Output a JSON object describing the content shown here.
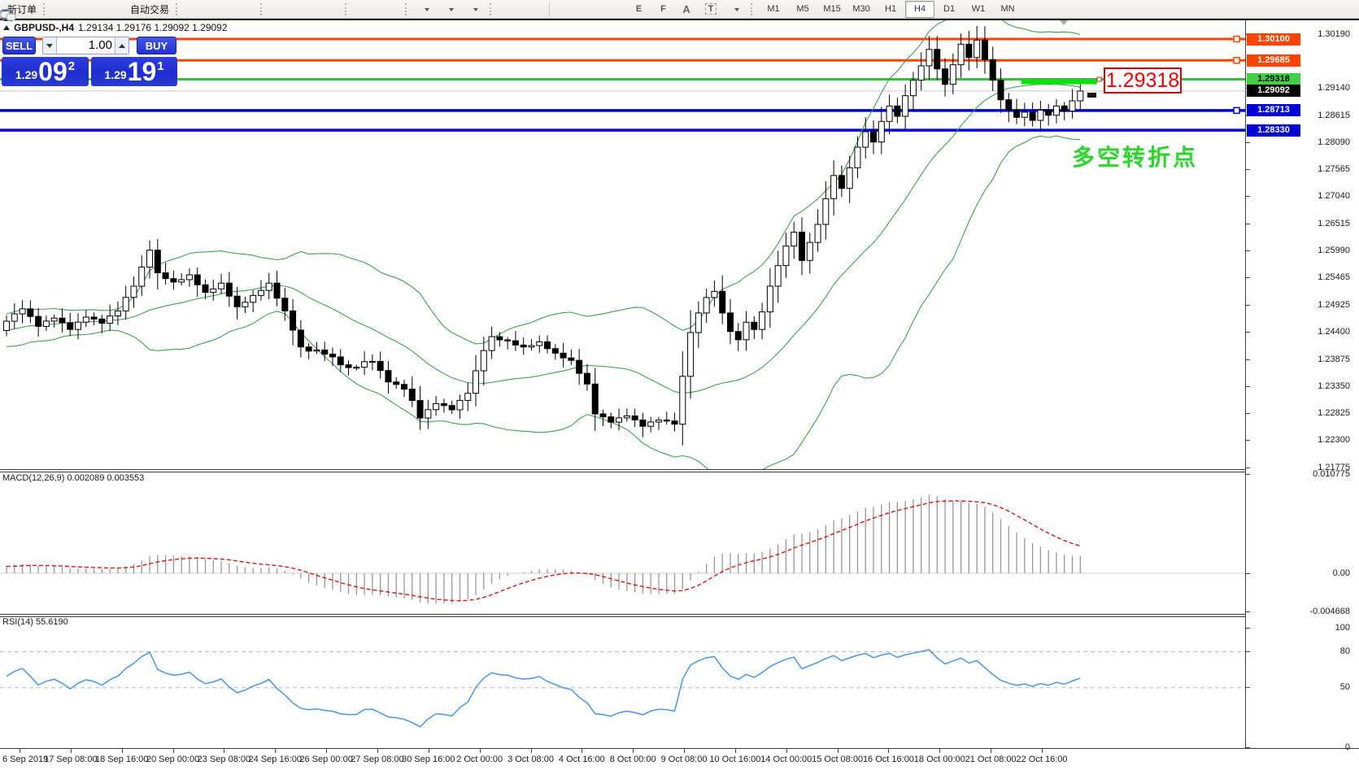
{
  "toolbar": {
    "new_order_label": "新订单",
    "autotrade_label": "自动交易",
    "timeframes": [
      "M1",
      "M5",
      "M15",
      "M30",
      "H1",
      "H4",
      "D1",
      "W1",
      "MN"
    ],
    "active_timeframe": "H4",
    "icon_glyphs": {
      "text_tool": "A",
      "label_tool": "T",
      "fibo_tool": "F",
      "channel_tool": "E"
    }
  },
  "header": {
    "symbol_period": "GBPUSD-,H4",
    "ohlc": "1.29134 1.29176 1.29092 1.29092"
  },
  "trade_panel": {
    "sell_label": "SELL",
    "buy_label": "BUY",
    "volume": "1.00",
    "sell": {
      "prefix": "1.29",
      "big": "09",
      "sup": "2"
    },
    "buy": {
      "prefix": "1.29",
      "big": "19",
      "sup": "1"
    }
  },
  "annotations": {
    "price_box": "1.29318",
    "turning_point": "多空转折点"
  },
  "chart_data": {
    "type": "candlestick",
    "symbol": "GBPUSD-",
    "period": "H4",
    "ohlc_display": {
      "open": "1.29134",
      "high": "1.29176",
      "low": "1.29092",
      "close": "1.29092"
    },
    "bars": 136,
    "y_range": [
      1.2176,
      1.3046
    ],
    "price_keyframes": [
      [
        0,
        1.2462
      ],
      [
        2,
        1.2486
      ],
      [
        4,
        1.2452
      ],
      [
        6,
        1.2468
      ],
      [
        8,
        1.2446
      ],
      [
        10,
        1.247
      ],
      [
        12,
        1.2458
      ],
      [
        14,
        1.2482
      ],
      [
        16,
        1.253
      ],
      [
        18,
        1.26
      ],
      [
        19,
        1.2556
      ],
      [
        21,
        1.2538
      ],
      [
        23,
        1.2552
      ],
      [
        25,
        1.2518
      ],
      [
        27,
        1.2536
      ],
      [
        29,
        1.249
      ],
      [
        31,
        1.2512
      ],
      [
        33,
        1.2536
      ],
      [
        35,
        1.2482
      ],
      [
        37,
        1.2412
      ],
      [
        40,
        1.2398
      ],
      [
        43,
        1.2372
      ],
      [
        46,
        1.2384
      ],
      [
        48,
        1.2344
      ],
      [
        50,
        1.233
      ],
      [
        51,
        1.2308
      ],
      [
        52,
        1.2274
      ],
      [
        54,
        1.2302
      ],
      [
        56,
        1.229
      ],
      [
        58,
        1.2322
      ],
      [
        60,
        1.2405
      ],
      [
        61,
        1.2432
      ],
      [
        63,
        1.2424
      ],
      [
        65,
        1.2412
      ],
      [
        67,
        1.2422
      ],
      [
        69,
        1.24
      ],
      [
        71,
        1.2386
      ],
      [
        73,
        1.234
      ],
      [
        74,
        1.2282
      ],
      [
        76,
        1.2266
      ],
      [
        78,
        1.2278
      ],
      [
        80,
        1.2258
      ],
      [
        82,
        1.227
      ],
      [
        84,
        1.2262
      ],
      [
        85,
        1.2355
      ],
      [
        86,
        1.244
      ],
      [
        87,
        1.2478
      ],
      [
        88,
        1.2508
      ],
      [
        89,
        1.252
      ],
      [
        90,
        1.2478
      ],
      [
        91,
        1.2442
      ],
      [
        92,
        1.2426
      ],
      [
        93,
        1.246
      ],
      [
        94,
        1.2446
      ],
      [
        95,
        1.248
      ],
      [
        96,
        1.253
      ],
      [
        97,
        1.257
      ],
      [
        98,
        1.2608
      ],
      [
        99,
        1.2635
      ],
      [
        100,
        1.258
      ],
      [
        101,
        1.2615
      ],
      [
        102,
        1.265
      ],
      [
        103,
        1.27
      ],
      [
        104,
        1.2745
      ],
      [
        105,
        1.272
      ],
      [
        106,
        1.276
      ],
      [
        107,
        1.28
      ],
      [
        108,
        1.283
      ],
      [
        109,
        1.281
      ],
      [
        110,
        1.285
      ],
      [
        111,
        1.288
      ],
      [
        112,
        1.286
      ],
      [
        113,
        1.29
      ],
      [
        114,
        1.293
      ],
      [
        115,
        1.2958
      ],
      [
        116,
        1.299
      ],
      [
        117,
        1.2952
      ],
      [
        118,
        1.2922
      ],
      [
        119,
        1.296
      ],
      [
        120,
        1.3
      ],
      [
        121,
        1.2974
      ],
      [
        122,
        1.3008
      ],
      [
        123,
        1.297
      ],
      [
        124,
        1.293
      ],
      [
        125,
        1.2892
      ],
      [
        126,
        1.2872
      ],
      [
        127,
        1.2858
      ],
      [
        128,
        1.2868
      ],
      [
        129,
        1.2852
      ],
      [
        130,
        1.2872
      ],
      [
        131,
        1.2862
      ],
      [
        132,
        1.288
      ],
      [
        133,
        1.287
      ],
      [
        134,
        1.289
      ],
      [
        135,
        1.2909
      ]
    ],
    "bollinger": {
      "period": 20,
      "deviation": 2,
      "color": "#3FA050"
    },
    "levels": [
      {
        "label": "1.30100",
        "price": 1.301,
        "line": "#FF4300",
        "bg": "#FF4300",
        "fg": "#FFFFFF",
        "lw": 3,
        "marker": true
      },
      {
        "label": "1.29685",
        "price": 1.29685,
        "line": "#FF4300",
        "bg": "#FF4300",
        "fg": "#FFFFFF",
        "lw": 3,
        "marker": true
      },
      {
        "label": "1.29318",
        "price": 1.29318,
        "line": "#3CBE3C",
        "bg": "#44CE44",
        "fg": "#000000",
        "lw": 3,
        "marker": false
      },
      {
        "label": "1.28713",
        "price": 1.28713,
        "line": "#0000D8",
        "bg": "#0000D8",
        "fg": "#FFFFFF",
        "lw": 3.5,
        "marker": true
      },
      {
        "label": "1.28330",
        "price": 1.2833,
        "line": "#0000D8",
        "bg": "#0000D8",
        "fg": "#FFFFFF",
        "lw": 3.5,
        "marker": false
      }
    ],
    "current_price": {
      "label": "1.29092",
      "price": 1.29092,
      "line": "#C8C8C8",
      "bg": "#000000",
      "fg": "#FFFFFF"
    },
    "highlight_box": {
      "bar_start": 127.6,
      "bar_end": 137.1,
      "price_top": 1.29311,
      "price_bottom": 1.29222,
      "color": "#0BE20B",
      "selection_marker": true
    },
    "y_ticks": [
      "1.30190",
      "1.29140",
      "1.28615",
      "1.28090",
      "1.27565",
      "1.27040",
      "1.26515",
      "1.25990",
      "1.25465",
      "1.24925",
      "1.24400",
      "1.23875",
      "1.23350",
      "1.22825",
      "1.22300",
      "1.21775"
    ],
    "macd": {
      "label": "MACD(12,26,9) 0.002089 0.003553",
      "params": [
        12,
        26,
        9
      ],
      "main": 0.002089,
      "signal": 0.003553,
      "axis": [
        "0.010775",
        "0.00",
        "-0.004668"
      ],
      "histogram_color": "#979797",
      "signal_color": "#E01010"
    },
    "rsi": {
      "label": "RSI(14) 55.6190",
      "period": 14,
      "value": 55.619,
      "axis": [
        "100",
        "80",
        "50",
        "0"
      ],
      "levels": [
        80,
        50
      ],
      "color": "#4495EC"
    },
    "x_labels": [
      "6 Sep 2019",
      "17 Sep 08:00",
      "18 Sep 16:00",
      "20 Sep 00:00",
      "23 Sep 08:00",
      "24 Sep 16:00",
      "26 Sep 00:00",
      "27 Sep 08:00",
      "30 Sep 16:00",
      "2 Oct 00:00",
      "3 Oct 08:00",
      "4 Oct 16:00",
      "8 Oct 00:00",
      "9 Oct 08:00",
      "10 Oct 16:00",
      "14 Oct 00:00",
      "15 Oct 08:00",
      "16 Oct 16:00",
      "18 Oct 00:00",
      "21 Oct 08:00",
      "22 Oct 16:00"
    ]
  }
}
